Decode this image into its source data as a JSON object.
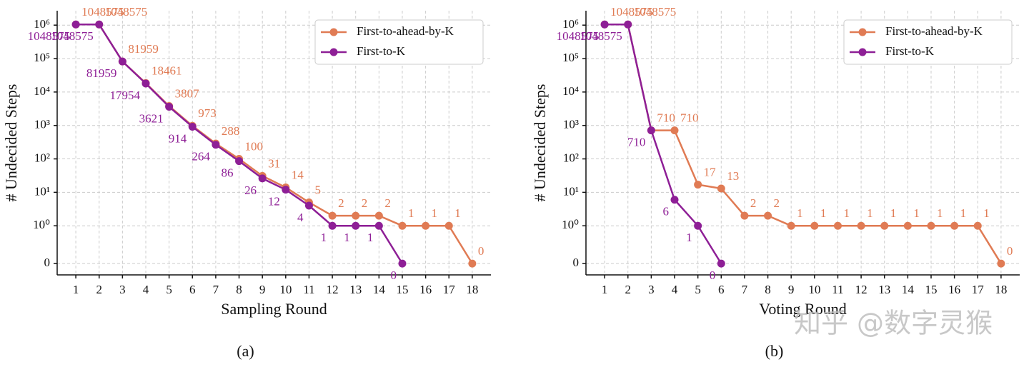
{
  "chart_data": [
    {
      "type": "line",
      "caption": "(a)",
      "x_label": "Sampling Round",
      "y_label": "# Undecided Steps",
      "x": [
        1,
        2,
        3,
        4,
        5,
        6,
        7,
        8,
        9,
        10,
        11,
        12,
        13,
        14,
        15,
        16,
        17,
        18
      ],
      "series": [
        {
          "name": "First-to-ahead-by-K",
          "color": "#e07b54",
          "values": [
            1048575,
            1048575,
            81959,
            18461,
            3807,
            973,
            288,
            100,
            31,
            14,
            5,
            2,
            2,
            2,
            1,
            1,
            1,
            0
          ]
        },
        {
          "name": "First-to-K",
          "color": "#8e1f96",
          "values": [
            1048575,
            1048575,
            81959,
            17954,
            3621,
            914,
            264,
            86,
            26,
            12,
            4,
            1,
            1,
            1,
            0,
            null,
            null,
            null
          ]
        }
      ],
      "xlim": [
        0.2,
        18.8
      ],
      "xticks": [
        1,
        2,
        3,
        4,
        5,
        6,
        7,
        8,
        9,
        10,
        11,
        12,
        13,
        14,
        15,
        16,
        17,
        18
      ],
      "yscale": "symlog",
      "ylim": [
        -0.3,
        2700000
      ],
      "yticks": [
        0,
        {
          "value": 1,
          "label": "10⁰"
        },
        {
          "value": 10,
          "label": "10¹"
        },
        {
          "value": 100,
          "label": "10²"
        },
        {
          "value": 1000,
          "label": "10³"
        },
        {
          "value": 10000,
          "label": "10⁴"
        },
        {
          "value": 100000,
          "label": "10⁵"
        },
        {
          "value": 1000000,
          "label": "10⁶"
        }
      ],
      "grid": true,
      "legend": "upper right"
    },
    {
      "type": "line",
      "caption": "(b)",
      "x_label": "Voting Round",
      "y_label": "# Undecided Steps",
      "watermark": "知乎 @数字灵猴",
      "x": [
        1,
        2,
        3,
        4,
        5,
        6,
        7,
        8,
        9,
        10,
        11,
        12,
        13,
        14,
        15,
        16,
        17,
        18
      ],
      "series": [
        {
          "name": "First-to-ahead-by-K",
          "color": "#e07b54",
          "values": [
            1048575,
            1048575,
            710,
            710,
            17,
            13,
            2,
            2,
            1,
            1,
            1,
            1,
            1,
            1,
            1,
            1,
            1,
            0
          ]
        },
        {
          "name": "First-to-K",
          "color": "#8e1f96",
          "values": [
            1048575,
            1048575,
            710,
            6,
            1,
            0,
            null,
            null,
            null,
            null,
            null,
            null,
            null,
            null,
            null,
            null,
            null,
            null
          ]
        }
      ],
      "xlim": [
        0.2,
        18.8
      ],
      "xticks": [
        1,
        2,
        3,
        4,
        5,
        6,
        7,
        8,
        9,
        10,
        11,
        12,
        13,
        14,
        15,
        16,
        17,
        18
      ],
      "yscale": "symlog",
      "ylim": [
        -0.3,
        2700000
      ],
      "yticks": [
        0,
        {
          "value": 1,
          "label": "10⁰"
        },
        {
          "value": 10,
          "label": "10¹"
        },
        {
          "value": 100,
          "label": "10²"
        },
        {
          "value": 1000,
          "label": "10³"
        },
        {
          "value": 10000,
          "label": "10⁴"
        },
        {
          "value": 100000,
          "label": "10⁵"
        },
        {
          "value": 1000000,
          "label": "10⁶"
        }
      ],
      "grid": true,
      "legend": "upper right"
    }
  ]
}
